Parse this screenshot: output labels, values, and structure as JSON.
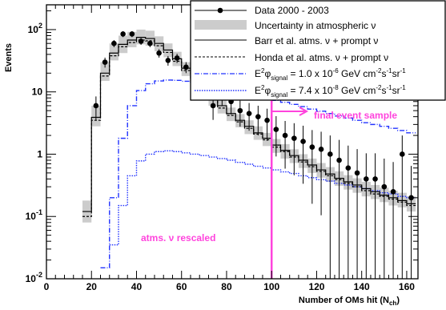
{
  "chart_data": {
    "type": "histogram",
    "xlabel": "Number of OMs hit (N",
    "xlabel_sub": "ch",
    "xlabel_end": ")",
    "ylabel": "Events",
    "xlim": [
      0,
      165
    ],
    "ylim": [
      0.01,
      250
    ],
    "yscale": "log",
    "bin_width": 4,
    "x_ticks": [
      0,
      20,
      40,
      60,
      80,
      100,
      120,
      140,
      160
    ],
    "x_tick_labels": [
      "0",
      "20",
      "40",
      "60",
      "80",
      "100",
      "120",
      "140",
      "160"
    ],
    "y_ticks": [
      0.01,
      0.1,
      1,
      10,
      100
    ],
    "y_tick_labels": [
      {
        "base": "10",
        "exp": "-2"
      },
      {
        "base": "10",
        "exp": "-1"
      },
      {
        "base": "1",
        "exp": ""
      },
      {
        "base": "10",
        "exp": ""
      },
      {
        "base": "10",
        "exp": "2"
      }
    ],
    "cut_line_x": 100,
    "series": [
      {
        "name": "Data 2000 - 2003",
        "kind": "points",
        "x": [
          22,
          26,
          30,
          34,
          38,
          42,
          46,
          50,
          54,
          58,
          62,
          66,
          70,
          74,
          78,
          82,
          86,
          90,
          94,
          98,
          102,
          106,
          110,
          114,
          118,
          122,
          126,
          130,
          134,
          138,
          142,
          146,
          150,
          154,
          158,
          162
        ],
        "y": [
          6,
          30,
          60,
          85,
          85,
          65,
          60,
          42,
          32,
          35,
          25,
          16,
          14,
          6,
          9,
          7,
          5,
          4.5,
          4,
          3.5,
          2.5,
          2,
          1.8,
          1.6,
          1.3,
          1.2,
          1,
          0.8,
          0.6,
          0.5,
          0.4,
          0.4,
          0.3,
          0.25,
          1,
          0.2
        ]
      },
      {
        "name": "Uncertainty in atmospheric ν",
        "kind": "band",
        "color": "#cccccc",
        "edges": [
          16,
          20,
          24,
          28,
          32,
          36,
          40,
          44,
          48,
          52,
          56,
          60,
          64,
          68,
          72,
          76,
          80,
          84,
          88,
          92,
          96,
          100,
          104,
          108,
          112,
          116,
          120,
          124,
          128,
          132,
          136,
          140,
          144,
          148,
          152,
          156,
          160,
          164
        ],
        "low": [
          0.08,
          2.8,
          15,
          32,
          42,
          52,
          58,
          55,
          45,
          36,
          26,
          18,
          12,
          9,
          6,
          4.5,
          3.4,
          2.7,
          2.1,
          1.7,
          1.35,
          1.05,
          0.85,
          0.72,
          0.6,
          0.5,
          0.42,
          0.36,
          0.31,
          0.27,
          0.24,
          0.21,
          0.19,
          0.17,
          0.15,
          0.14,
          0.12
        ],
        "high": [
          0.18,
          6,
          30,
          60,
          80,
          92,
          100,
          96,
          78,
          60,
          44,
          30,
          20,
          15,
          10,
          7.5,
          5.6,
          4.4,
          3.5,
          2.8,
          2.2,
          1.75,
          1.45,
          1.2,
          1.0,
          0.85,
          0.72,
          0.62,
          0.53,
          0.46,
          0.41,
          0.36,
          0.32,
          0.29,
          0.26,
          0.24,
          0.21
        ]
      },
      {
        "name": "Barr et al. atms. ν + prompt ν",
        "kind": "step",
        "color": "#000000",
        "dash": "",
        "edges": [
          16,
          20,
          24,
          28,
          32,
          36,
          40,
          44,
          48,
          52,
          56,
          60,
          64,
          68,
          72,
          76,
          80,
          84,
          88,
          92,
          96,
          100,
          104,
          108,
          112,
          116,
          120,
          124,
          128,
          132,
          136,
          140,
          144,
          148,
          152,
          156,
          160,
          164
        ],
        "values": [
          0.12,
          3.9,
          20,
          42,
          58,
          68,
          75,
          72,
          60,
          47,
          34,
          24,
          16,
          12,
          8,
          6,
          4.5,
          3.5,
          2.8,
          2.2,
          1.8,
          1.4,
          1.15,
          0.95,
          0.8,
          0.67,
          0.56,
          0.48,
          0.41,
          0.36,
          0.32,
          0.28,
          0.25,
          0.22,
          0.2,
          0.18,
          0.16
        ]
      },
      {
        "name": "Honda et al. atms. ν + prompt ν",
        "kind": "step",
        "color": "#000000",
        "dash": "3,2",
        "edges": [
          16,
          20,
          24,
          28,
          32,
          36,
          40,
          44,
          48,
          52,
          56,
          60,
          64,
          68,
          72,
          76,
          80,
          84,
          88,
          92,
          96,
          100,
          104,
          108,
          112,
          116,
          120,
          124,
          128,
          132,
          136,
          140,
          144,
          148,
          152,
          156,
          160,
          164
        ],
        "values": [
          0.1,
          3.5,
          18,
          38,
          53,
          62,
          68,
          66,
          55,
          43,
          31,
          22,
          15,
          11,
          7.4,
          5.5,
          4.2,
          3.3,
          2.6,
          2.1,
          1.7,
          1.3,
          1.1,
          0.9,
          0.75,
          0.63,
          0.53,
          0.45,
          0.39,
          0.34,
          0.3,
          0.26,
          0.23,
          0.21,
          0.19,
          0.17,
          0.15
        ]
      },
      {
        "name": "E²φ signal = 1.0 x 10⁻⁶ GeV cm⁻²s⁻¹sr⁻¹",
        "kind": "step",
        "color": "#2233ff",
        "dash": "6,2,1,2",
        "edges": [
          24,
          28,
          32,
          36,
          40,
          44,
          48,
          52,
          56,
          60,
          64,
          68,
          72,
          76,
          80,
          84,
          88,
          92,
          96,
          100,
          104,
          108,
          112,
          116,
          120,
          124,
          128,
          132,
          136,
          140,
          144,
          148,
          152,
          156,
          160,
          164
        ],
        "values": [
          0.015,
          0.2,
          1.8,
          6,
          10.5,
          13.5,
          15,
          15.5,
          15.3,
          14.8,
          13.8,
          12.8,
          11.8,
          10.8,
          10,
          9.4,
          8.8,
          8.2,
          7.7,
          7.3,
          6.8,
          6.3,
          5.8,
          5.3,
          4.9,
          4.5,
          4.1,
          3.8,
          3.5,
          3.2,
          3.0,
          2.8,
          2.6,
          2.4,
          2.2
        ]
      },
      {
        "name": "E²φ signal = 7.4 x 10⁻⁸ GeV cm⁻²s⁻¹sr⁻¹",
        "kind": "step",
        "color": "#2233ff",
        "dash": "1.5,1.5",
        "edges": [
          28,
          32,
          36,
          40,
          44,
          48,
          52,
          56,
          60,
          64,
          68,
          72,
          76,
          80,
          84,
          88,
          92,
          96,
          100,
          104,
          108,
          112,
          116,
          120,
          124,
          128,
          132,
          136,
          140,
          144,
          148,
          152,
          156,
          160,
          164
        ],
        "values": [
          0.035,
          0.15,
          0.45,
          0.78,
          1.0,
          1.1,
          1.13,
          1.1,
          1.05,
          1.0,
          0.95,
          0.9,
          0.85,
          0.8,
          0.74,
          0.69,
          0.64,
          0.6,
          0.56,
          0.52,
          0.49,
          0.45,
          0.42,
          0.39,
          0.37,
          0.34,
          0.32,
          0.3,
          0.28,
          0.26,
          0.24,
          0.23,
          0.21,
          0.2
        ]
      }
    ],
    "annotations": [
      {
        "text": "final event sample"
      },
      {
        "text": "atms. ν rescaled"
      }
    ]
  },
  "legend": {
    "items": [
      {
        "label": "Data 2000 - 2003"
      },
      {
        "label": "Uncertainty in atmospheric ν"
      },
      {
        "label": "Barr et al. atms. ν + prompt ν"
      },
      {
        "label": "Honda et al. atms. ν + prompt ν"
      },
      {
        "pre": "E",
        "sup": "2",
        "phi": "φ",
        "sub": "signal",
        "rest": " = 1.0 x 10",
        "exp": "-6",
        "unit": " GeV cm",
        "u1": "-2",
        "s": "s",
        "u2": "-1",
        "sr": "sr",
        "u3": "-1"
      },
      {
        "pre": "E",
        "sup": "2",
        "phi": "φ",
        "sub": "signal",
        "rest": " = 7.4 x 10",
        "exp": "-8",
        "unit": " GeV cm",
        "u1": "-2",
        "s": "s",
        "u2": "-1",
        "sr": "sr",
        "u3": "-1"
      }
    ]
  },
  "colors": {
    "magenta": "#ff44dd",
    "blue": "#2233ff",
    "band": "#cccccc"
  }
}
